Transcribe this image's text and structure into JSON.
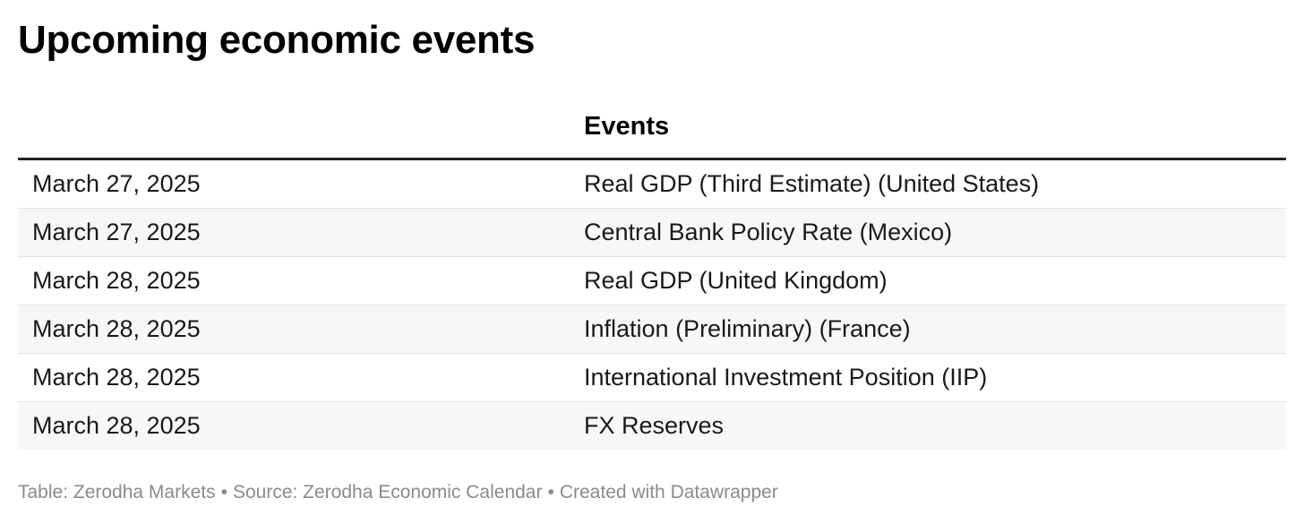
{
  "chart_data": {
    "type": "table",
    "title": "Upcoming economic events",
    "columns": [
      "",
      "Events"
    ],
    "rows": [
      {
        "date": "March 27, 2025",
        "event": "Real GDP (Third Estimate) (United States)"
      },
      {
        "date": "March 27, 2025",
        "event": "Central Bank Policy Rate (Mexico)"
      },
      {
        "date": "March 28, 2025",
        "event": "Real GDP (United Kingdom)"
      },
      {
        "date": "March 28, 2025",
        "event": "Inflation (Preliminary) (France)"
      },
      {
        "date": "March 28, 2025",
        "event": "International Investment Position (IIP)"
      },
      {
        "date": "March 28, 2025",
        "event": "FX Reserves"
      }
    ]
  },
  "footer": {
    "table_credit": "Table: Zerodha Markets",
    "source": "Source: Zerodha Economic Calendar",
    "created_with": "Created with Datawrapper",
    "separator": "•"
  }
}
